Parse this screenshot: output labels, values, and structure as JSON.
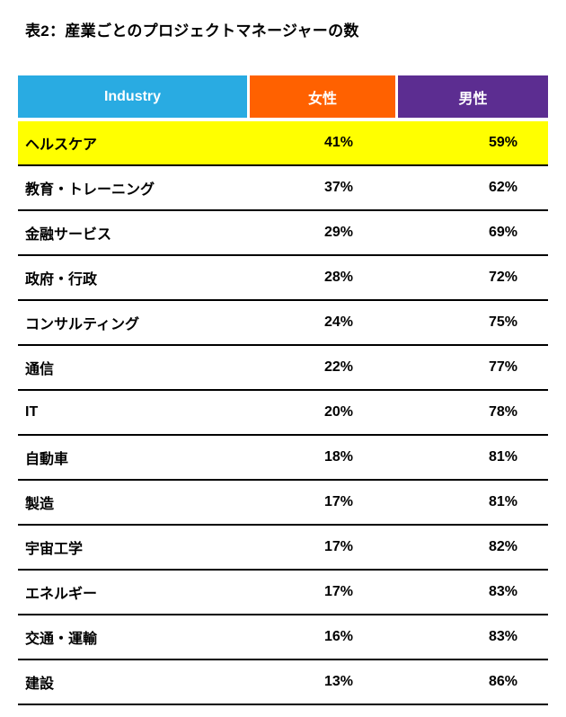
{
  "title": "表2：産業ごとのプロジェクトマネージャーの数",
  "colors": {
    "industry_header_bg": "#29ABE2",
    "female_header_bg": "#FF6100",
    "male_header_bg": "#5C2D91",
    "highlight_bg": "#FFFF00"
  },
  "chart_data": {
    "type": "table",
    "title": "表2：産業ごとのプロジェクトマネージャーの数",
    "columns": [
      "Industry",
      "女性",
      "男性"
    ],
    "legend_position": "none",
    "grid": "horizontal-black-rules",
    "highlighted_row": "ヘルスケア",
    "rows": [
      {
        "industry": "ヘルスケア",
        "female": "41%",
        "male": "59%",
        "highlight": true
      },
      {
        "industry": "教育・トレーニング",
        "female": "37%",
        "male": "62%",
        "highlight": false
      },
      {
        "industry": "金融サービス",
        "female": "29%",
        "male": "69%",
        "highlight": false
      },
      {
        "industry": "政府・行政",
        "female": "28%",
        "male": "72%",
        "highlight": false
      },
      {
        "industry": "コンサルティング",
        "female": "24%",
        "male": "75%",
        "highlight": false
      },
      {
        "industry": "通信",
        "female": "22%",
        "male": "77%",
        "highlight": false
      },
      {
        "industry": "IT",
        "female": "20%",
        "male": "78%",
        "highlight": false
      },
      {
        "industry": "自動車",
        "female": "18%",
        "male": "81%",
        "highlight": false
      },
      {
        "industry": "製造",
        "female": "17%",
        "male": "81%",
        "highlight": false
      },
      {
        "industry": "宇宙工学",
        "female": "17%",
        "male": "82%",
        "highlight": false
      },
      {
        "industry": "エネルギー",
        "female": "17%",
        "male": "83%",
        "highlight": false
      },
      {
        "industry": "交通・運輸",
        "female": "16%",
        "male": "83%",
        "highlight": false
      },
      {
        "industry": "建設",
        "female": "13%",
        "male": "86%",
        "highlight": false
      }
    ]
  }
}
